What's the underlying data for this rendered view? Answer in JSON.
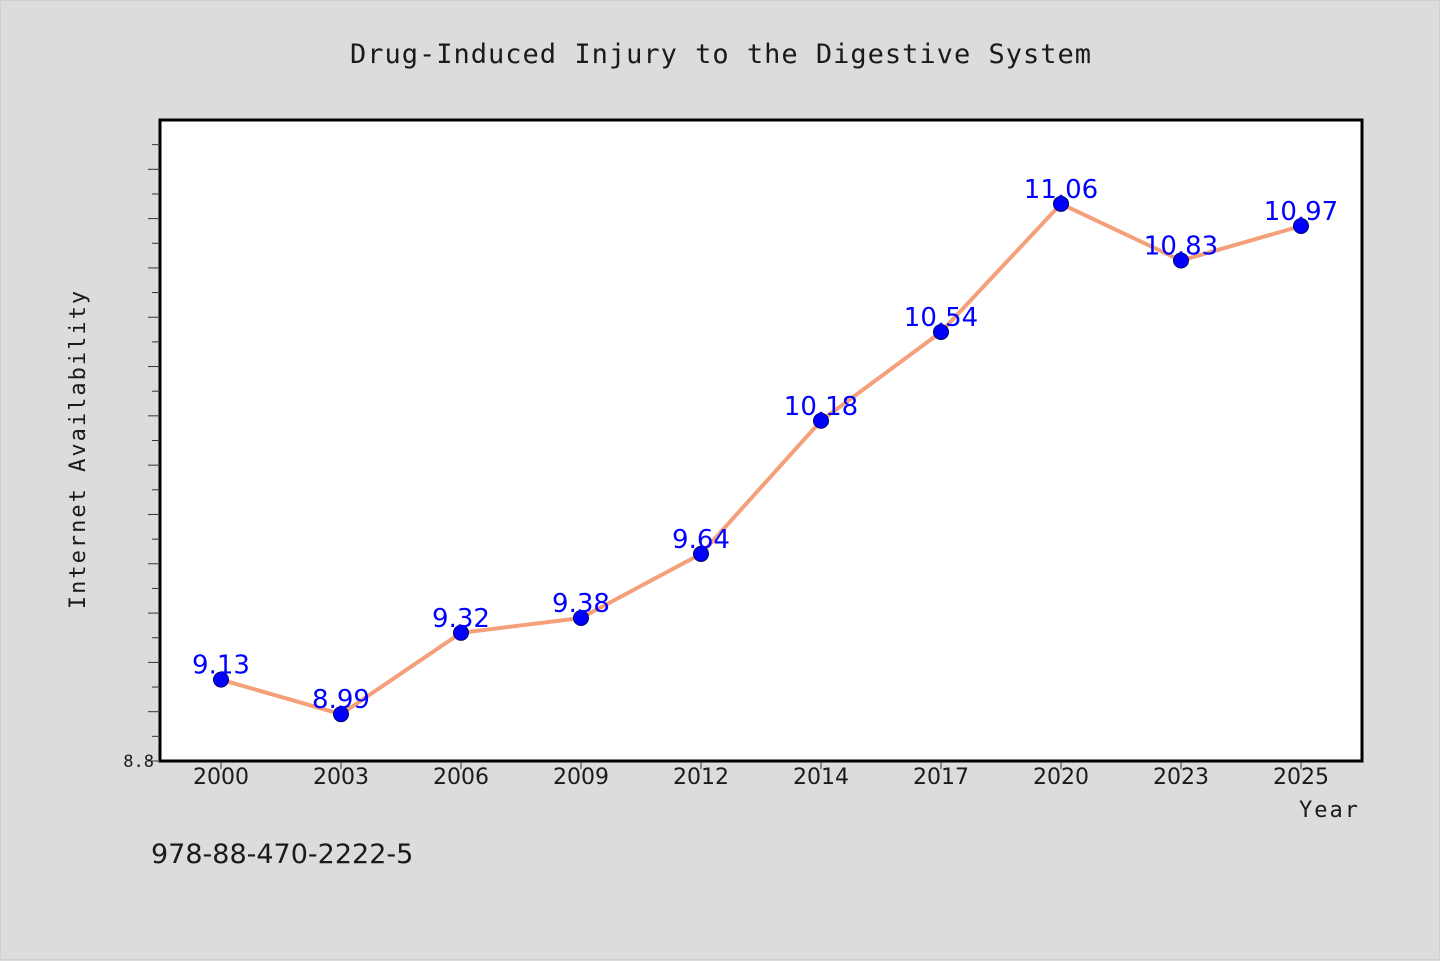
{
  "chart_data": {
    "type": "line",
    "title": "Drug-Induced Injury to the Digestive System",
    "xlabel": "Year",
    "ylabel": "Internet Availability",
    "categories": [
      "2000",
      "2003",
      "2006",
      "2009",
      "2012",
      "2014",
      "2017",
      "2020",
      "2023",
      "2025"
    ],
    "series": [
      {
        "values": [
          9.13,
          8.99,
          9.32,
          9.38,
          9.64,
          10.18,
          10.54,
          11.06,
          10.83,
          10.97
        ]
      }
    ],
    "data_labels": [
      "9.13",
      "8.99",
      "9.32",
      "9.38",
      "9.64",
      "10.18",
      "10.54",
      "11.06",
      "10.83",
      "10.97"
    ],
    "ylim": [
      8.8,
      11.4
    ],
    "y_tick_labels": [
      "8.8"
    ],
    "grid": false,
    "line_color": "#f4a07a",
    "marker_color": "#0000ff",
    "label_color": "#0000ff"
  },
  "footer": {
    "isbn": "978-88-470-2222-5"
  }
}
